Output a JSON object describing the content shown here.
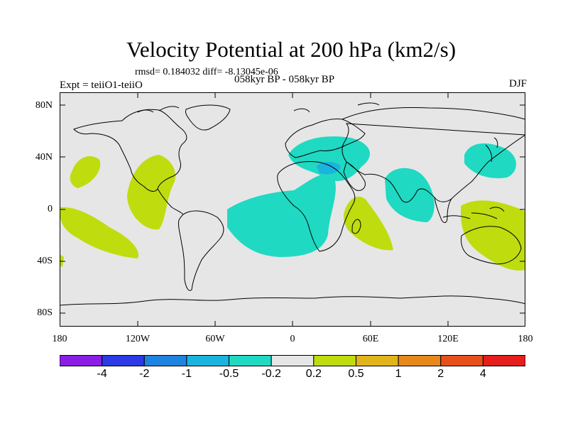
{
  "title": "Velocity Potential at 200 hPa (km2/s)",
  "stats_text": "rmsd= 0.184032 diff= -8.13045e-06",
  "expt_text": "Expt = teiiO1-teiiO",
  "period_text": "058kyr BP - 058kyr BP",
  "season": "DJF",
  "lat_labels": [
    "80N",
    "40N",
    "0",
    "40S",
    "80S"
  ],
  "lon_labels": [
    "180",
    "120W",
    "60W",
    "0",
    "60E",
    "120E",
    "180"
  ],
  "colors": {
    "background": "#e6e6e6",
    "negative_fill": "#1fd9c2",
    "strong_negative_fill": "#1ab4de",
    "positive_fill": "#bfdc0f",
    "coast": "#000000"
  },
  "colorbar": {
    "colors": [
      "#8b1ee6",
      "#2c3ae6",
      "#1f84e0",
      "#1ab4de",
      "#1fd9c2",
      "#e6e6e6",
      "#bfdc0f",
      "#e0b41a",
      "#e6891a",
      "#e6501a",
      "#e61e1e"
    ],
    "labels": [
      "-4",
      "-2",
      "-1",
      "-0.5",
      "-0.2",
      "0.2",
      "0.5",
      "1",
      "2",
      "4"
    ]
  }
}
